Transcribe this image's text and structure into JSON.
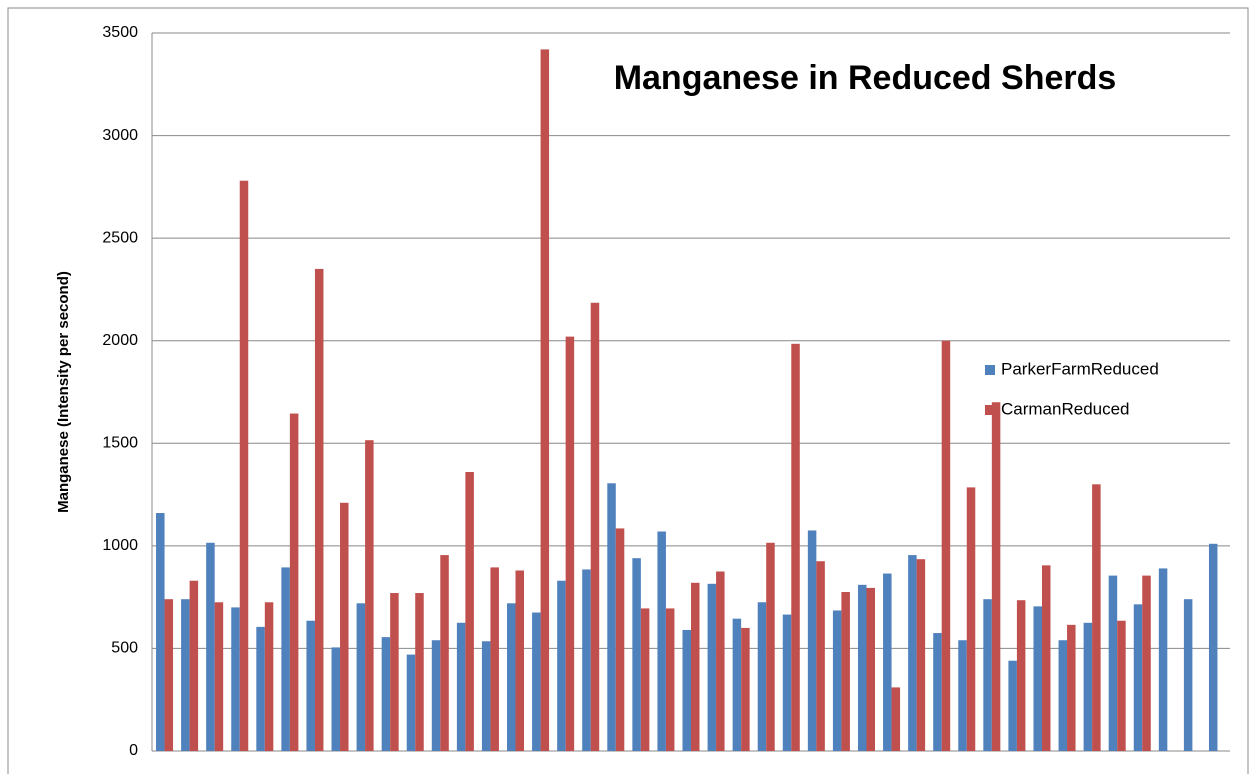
{
  "chart_data": {
    "type": "bar",
    "title": "Manganese in Reduced Sherds",
    "ylabel": "Manganese (Intensity per second)",
    "categories": [
      null,
      null,
      null,
      null,
      null,
      null,
      null,
      null,
      null,
      null,
      null,
      null,
      null,
      null,
      null,
      null,
      null,
      null,
      null,
      null,
      null,
      null,
      null,
      null,
      null,
      null,
      null,
      null,
      null,
      null,
      null,
      null,
      null,
      null,
      null,
      null,
      null,
      null,
      null,
      null,
      null,
      null,
      null
    ],
    "series": [
      {
        "name": "ParkerFarmReduced",
        "color": "#4f81bd",
        "values": [
          1160,
          740,
          1015,
          700,
          605,
          895,
          635,
          505,
          720,
          555,
          470,
          540,
          625,
          535,
          720,
          675,
          830,
          885,
          1305,
          940,
          1070,
          590,
          815,
          645,
          725,
          665,
          1075,
          685,
          810,
          865,
          955,
          575,
          540,
          740,
          440,
          705,
          540,
          625,
          855,
          715,
          890,
          740,
          1010
        ]
      },
      {
        "name": "CarmanReduced",
        "color": "#c0504d",
        "values": [
          740,
          830,
          725,
          2780,
          725,
          1645,
          2350,
          1210,
          1515,
          770,
          770,
          955,
          1360,
          895,
          880,
          3420,
          2020,
          2185,
          1085,
          695,
          695,
          820,
          875,
          600,
          1015,
          1985,
          925,
          775,
          795,
          310,
          935,
          2000,
          1285,
          1700,
          735,
          905,
          615,
          1300,
          635,
          855,
          null,
          null,
          null
        ]
      }
    ],
    "ylim": [
      0,
      3500
    ],
    "yticks": [
      0,
      500,
      1000,
      1500,
      2000,
      2500,
      3000,
      3500
    ],
    "grid": true
  }
}
